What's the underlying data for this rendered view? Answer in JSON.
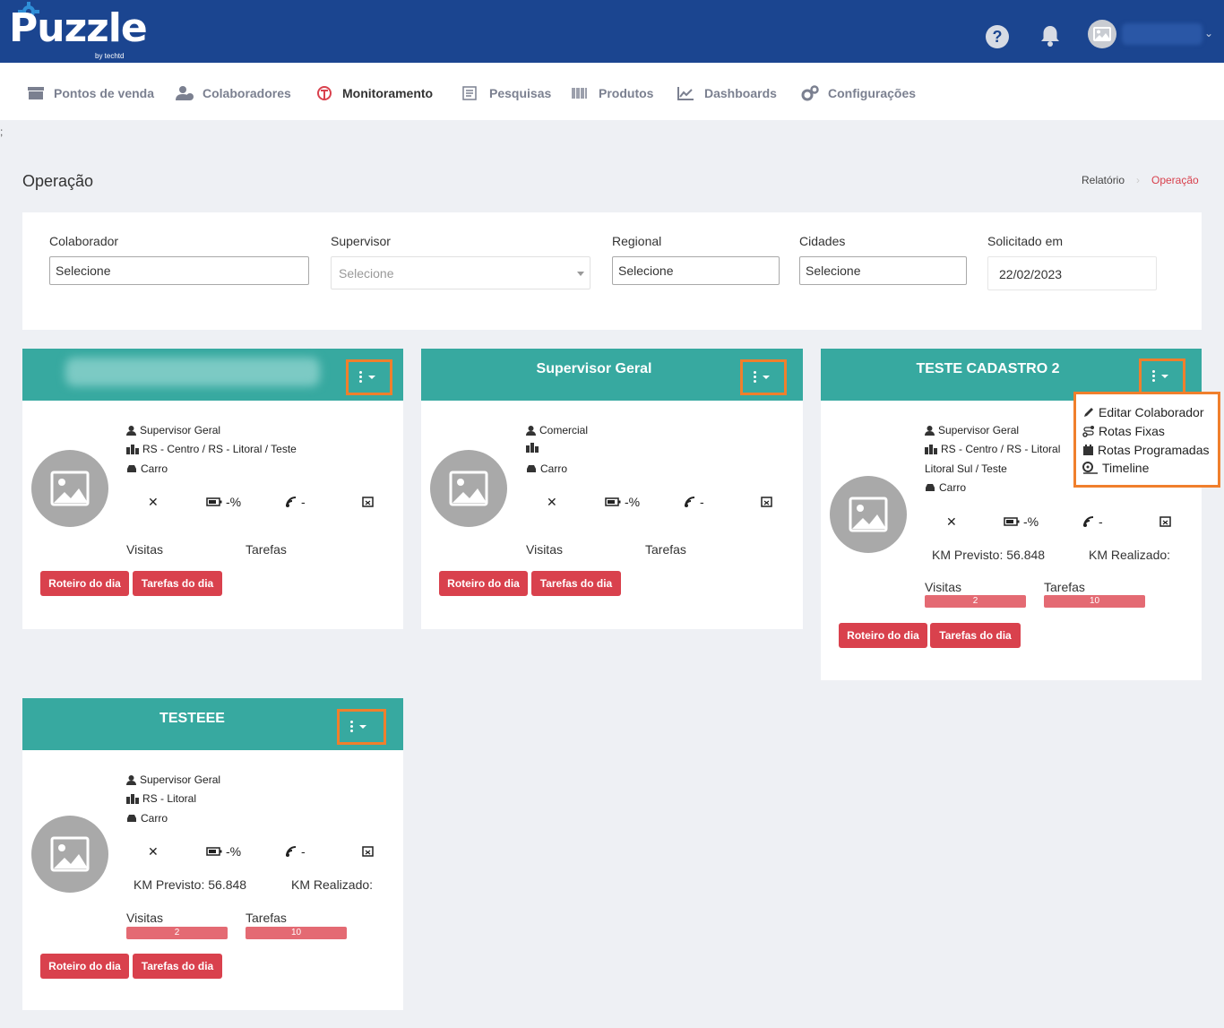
{
  "app": {
    "logo_text": "Puzzle",
    "logo_sub": "by techtd",
    "help_label": "?"
  },
  "nav": {
    "items": [
      {
        "label": "Pontos de venda",
        "icon": "store-icon"
      },
      {
        "label": "Colaboradores",
        "icon": "users-icon"
      },
      {
        "label": "Monitoramento",
        "icon": "monitor-logo-icon"
      },
      {
        "label": "Pesquisas",
        "icon": "survey-icon"
      },
      {
        "label": "Produtos",
        "icon": "barcode-icon"
      },
      {
        "label": "Dashboards",
        "icon": "chart-line-icon"
      },
      {
        "label": "Configurações",
        "icon": "gears-icon"
      }
    ],
    "active": "Monitoramento"
  },
  "stray_text": ";",
  "page": {
    "title": "Operação",
    "breadcrumb": [
      "Relatório",
      "Operação"
    ]
  },
  "filters": {
    "colaborador": {
      "label": "Colaborador",
      "value": "Selecione"
    },
    "supervisor": {
      "label": "Supervisor",
      "placeholder": "Selecione"
    },
    "regional": {
      "label": "Regional",
      "value": "Selecione"
    },
    "cidades": {
      "label": "Cidades",
      "value": "Selecione"
    },
    "solicitado": {
      "label": "Solicitado em",
      "value": "22/02/2023"
    }
  },
  "cards": [
    {
      "name": "",
      "role": "Supervisor Geral",
      "regions": "RS - Centro / RS - Litoral / Teste",
      "vehicle": "Carro",
      "status_symbol": "✕",
      "battery": "-%",
      "signal": "-",
      "visits_label": "Visitas",
      "tasks_label": "Tarefas",
      "btn_route": "Roteiro do dia",
      "btn_tasks": "Tarefas do dia"
    },
    {
      "name": "Supervisor Geral",
      "role": "Comercial",
      "regions": "",
      "vehicle": "Carro",
      "status_symbol": "✕",
      "battery": "-%",
      "signal": "-",
      "visits_label": "Visitas",
      "tasks_label": "Tarefas",
      "btn_route": "Roteiro do dia",
      "btn_tasks": "Tarefas do dia"
    },
    {
      "name": "TESTE CADASTRO 2",
      "role": "Supervisor Geral",
      "regions_line1": "RS - Centro / RS - Litoral",
      "regions_line2": "Litoral Sul / Teste",
      "vehicle": "Carro",
      "status_symbol": "✕",
      "battery": "-%",
      "signal": "-",
      "km_previsto": "KM Previsto: 56.848",
      "km_realizado": "KM Realizado:",
      "visits_label": "Visitas",
      "visits_value": "2",
      "tasks_label": "Tarefas",
      "tasks_value": "10",
      "btn_route": "Roteiro do dia",
      "btn_tasks": "Tarefas do dia"
    },
    {
      "name": "TESTEEE",
      "role": "Supervisor Geral",
      "regions": "RS - Litoral",
      "vehicle": "Carro",
      "status_symbol": "✕",
      "battery": "-%",
      "signal": "-",
      "km_previsto": "KM Previsto: 56.848",
      "km_realizado": "KM Realizado:",
      "visits_label": "Visitas",
      "visits_value": "2",
      "tasks_label": "Tarefas",
      "tasks_value": "10",
      "btn_route": "Roteiro do dia",
      "btn_tasks": "Tarefas do dia"
    }
  ],
  "dropdown": {
    "items": [
      {
        "label": "Editar Colaborador",
        "icon": "pencil-icon"
      },
      {
        "label": "Rotas Fixas",
        "icon": "route-icon"
      },
      {
        "label": "Rotas Programadas",
        "icon": "calendar-icon"
      },
      {
        "label": "Timeline",
        "icon": "timeline-icon"
      }
    ]
  },
  "colors": {
    "topbar": "#1b4590",
    "card_header": "#37a9a0",
    "accent_red": "#d9414d",
    "highlight_orange": "#f07f2c"
  }
}
